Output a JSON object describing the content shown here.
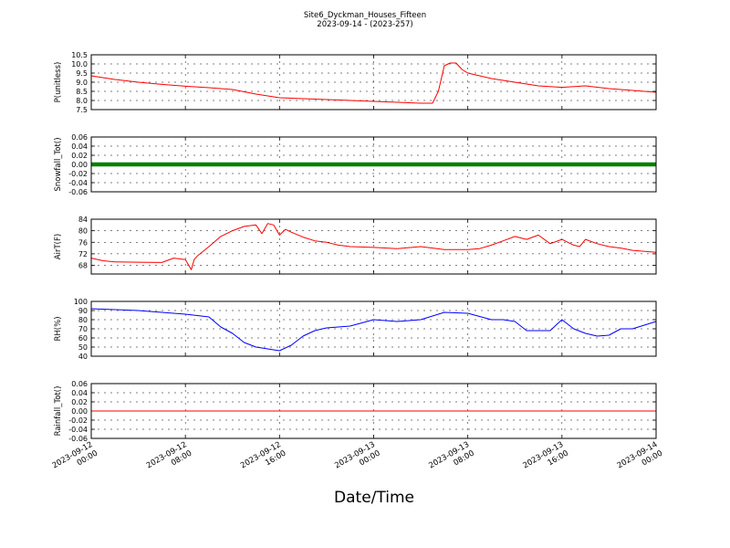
{
  "figure": {
    "title_line1": "Site6_Dyckman_Houses_Fifteen",
    "title_line2": "2023-09-14 - (2023-257)",
    "xlabel": "Date/Time"
  },
  "chart_data": [
    {
      "type": "line",
      "ylabel": "P(unitless)",
      "ylim": [
        7.5,
        10.5
      ],
      "yticks": [
        "7.5",
        "8.0",
        "8.5",
        "9.0",
        "9.5",
        "10.0",
        "10.5"
      ],
      "grid": true,
      "series": [
        {
          "color": "#ff0000",
          "x": [
            "2023-09-12 00:00",
            "2023-09-12 02:00",
            "2023-09-12 04:00",
            "2023-09-12 06:00",
            "2023-09-12 08:00",
            "2023-09-12 10:00",
            "2023-09-12 12:00",
            "2023-09-12 14:00",
            "2023-09-12 16:00",
            "2023-09-12 18:00",
            "2023-09-12 20:00",
            "2023-09-12 22:00",
            "2023-09-13 00:00",
            "2023-09-13 02:00",
            "2023-09-13 04:00",
            "2023-09-13 04:30",
            "2023-09-13 05:00",
            "2023-09-13 05:30",
            "2023-09-13 06:00",
            "2023-09-13 06:30",
            "2023-09-13 07:00",
            "2023-09-13 07:30",
            "2023-09-13 08:00",
            "2023-09-13 10:00",
            "2023-09-13 12:00",
            "2023-09-13 14:00",
            "2023-09-13 16:00",
            "2023-09-13 18:00",
            "2023-09-13 20:00",
            "2023-09-13 22:00",
            "2023-09-14 00:00"
          ],
          "values": [
            9.35,
            9.15,
            9.0,
            8.88,
            8.78,
            8.7,
            8.6,
            8.35,
            8.15,
            8.1,
            8.05,
            8.0,
            7.95,
            7.9,
            7.85,
            7.85,
            7.85,
            8.5,
            9.9,
            10.05,
            10.05,
            9.7,
            9.5,
            9.2,
            9.0,
            8.8,
            8.72,
            8.8,
            8.65,
            8.55,
            8.45
          ]
        }
      ]
    },
    {
      "type": "line",
      "ylabel": "Snowfall_Tot()",
      "ylim": [
        -0.06,
        0.06
      ],
      "yticks": [
        "-0.06",
        "-0.04",
        "-0.02",
        "0.00",
        "0.02",
        "0.04",
        "0.06"
      ],
      "grid": true,
      "series": [
        {
          "color": "#008000",
          "x": [
            "2023-09-12 00:00",
            "2023-09-14 00:00"
          ],
          "values": [
            0.0,
            0.0
          ],
          "markers": true
        }
      ]
    },
    {
      "type": "line",
      "ylabel": "AirT(F)",
      "ylim": [
        65,
        84
      ],
      "yticks": [
        "68",
        "72",
        "76",
        "80",
        "84"
      ],
      "grid": true,
      "series": [
        {
          "color": "#ff0000",
          "x": [
            "2023-09-12 00:00",
            "2023-09-12 01:00",
            "2023-09-12 02:00",
            "2023-09-12 04:00",
            "2023-09-12 06:00",
            "2023-09-12 07:00",
            "2023-09-12 08:00",
            "2023-09-12 08:30",
            "2023-09-12 08:45",
            "2023-09-12 09:00",
            "2023-09-12 10:00",
            "2023-09-12 11:00",
            "2023-09-12 12:00",
            "2023-09-12 13:00",
            "2023-09-12 14:00",
            "2023-09-12 14:30",
            "2023-09-12 15:00",
            "2023-09-12 15:30",
            "2023-09-12 16:00",
            "2023-09-12 16:30",
            "2023-09-12 17:00",
            "2023-09-12 18:00",
            "2023-09-12 19:00",
            "2023-09-12 20:00",
            "2023-09-12 21:00",
            "2023-09-12 22:00",
            "2023-09-13 00:00",
            "2023-09-13 02:00",
            "2023-09-13 04:00",
            "2023-09-13 06:00",
            "2023-09-13 08:00",
            "2023-09-13 09:00",
            "2023-09-13 10:00",
            "2023-09-13 11:00",
            "2023-09-13 12:00",
            "2023-09-13 13:00",
            "2023-09-13 14:00",
            "2023-09-13 15:00",
            "2023-09-13 16:00",
            "2023-09-13 16:30",
            "2023-09-13 17:00",
            "2023-09-13 17:30",
            "2023-09-13 18:00",
            "2023-09-13 19:00",
            "2023-09-13 20:00",
            "2023-09-13 21:00",
            "2023-09-13 22:00",
            "2023-09-14 00:00"
          ],
          "values": [
            70.5,
            69.6,
            69.2,
            69.1,
            69.0,
            70.5,
            70.0,
            66.5,
            70.0,
            71.2,
            74.5,
            78.0,
            80.0,
            81.5,
            82.0,
            79.0,
            82.5,
            82.0,
            78.5,
            80.5,
            79.5,
            77.8,
            76.5,
            76.0,
            75.0,
            74.5,
            74.2,
            73.8,
            74.5,
            73.5,
            73.5,
            73.8,
            75.0,
            76.5,
            78.0,
            77.0,
            78.5,
            75.5,
            77.0,
            76.0,
            75.0,
            74.5,
            77.0,
            75.5,
            74.5,
            74.0,
            73.2,
            72.5
          ]
        }
      ]
    },
    {
      "type": "line",
      "ylabel": "RH(%)",
      "ylim": [
        40,
        100
      ],
      "yticks": [
        "40",
        "50",
        "60",
        "70",
        "80",
        "90",
        "100"
      ],
      "grid": true,
      "series": [
        {
          "color": "#0000ff",
          "x": [
            "2023-09-12 00:00",
            "2023-09-12 02:00",
            "2023-09-12 04:00",
            "2023-09-12 06:00",
            "2023-09-12 08:00",
            "2023-09-12 10:00",
            "2023-09-12 11:00",
            "2023-09-12 12:00",
            "2023-09-12 13:00",
            "2023-09-12 14:00",
            "2023-09-12 15:00",
            "2023-09-12 16:00",
            "2023-09-12 17:00",
            "2023-09-12 18:00",
            "2023-09-12 19:00",
            "2023-09-12 20:00",
            "2023-09-12 22:00",
            "2023-09-13 00:00",
            "2023-09-13 02:00",
            "2023-09-13 04:00",
            "2023-09-13 06:00",
            "2023-09-13 08:00",
            "2023-09-13 10:00",
            "2023-09-13 11:00",
            "2023-09-13 12:00",
            "2023-09-13 13:00",
            "2023-09-13 14:00",
            "2023-09-13 15:00",
            "2023-09-13 16:00",
            "2023-09-13 17:00",
            "2023-09-13 18:00",
            "2023-09-13 19:00",
            "2023-09-13 20:00",
            "2023-09-13 21:00",
            "2023-09-13 22:00",
            "2023-09-14 00:00"
          ],
          "values": [
            92,
            91,
            90,
            88,
            86,
            83,
            72,
            65,
            55,
            50,
            48,
            46,
            52,
            62,
            68,
            71,
            73,
            80,
            78,
            80,
            88,
            87,
            80,
            80,
            78,
            68,
            68,
            68,
            80,
            70,
            65,
            62,
            63,
            70,
            70,
            78
          ]
        }
      ]
    },
    {
      "type": "line",
      "ylabel": "Rainfall_Tot()",
      "ylim": [
        -0.06,
        0.06
      ],
      "yticks": [
        "-0.06",
        "-0.04",
        "-0.02",
        "0.00",
        "0.02",
        "0.04",
        "0.06"
      ],
      "grid": true,
      "series": [
        {
          "color": "#ff0000",
          "x": [
            "2023-09-12 00:00",
            "2023-09-14 00:00"
          ],
          "values": [
            0.0,
            0.0
          ]
        }
      ]
    }
  ],
  "x_axis": {
    "range": [
      "2023-09-12 00:00",
      "2023-09-14 00:00"
    ],
    "ticks": [
      {
        "x": "2023-09-12 00:00",
        "line1": "2023-09-12",
        "line2": "00:00"
      },
      {
        "x": "2023-09-12 08:00",
        "line1": "2023-09-12",
        "line2": "08:00"
      },
      {
        "x": "2023-09-12 16:00",
        "line1": "2023-09-12",
        "line2": "16:00"
      },
      {
        "x": "2023-09-13 00:00",
        "line1": "2023-09-13",
        "line2": "00:00"
      },
      {
        "x": "2023-09-13 08:00",
        "line1": "2023-09-13",
        "line2": "08:00"
      },
      {
        "x": "2023-09-13 16:00",
        "line1": "2023-09-13",
        "line2": "16:00"
      },
      {
        "x": "2023-09-14 00:00",
        "line1": "2023-09-14",
        "line2": "00:00"
      }
    ]
  }
}
